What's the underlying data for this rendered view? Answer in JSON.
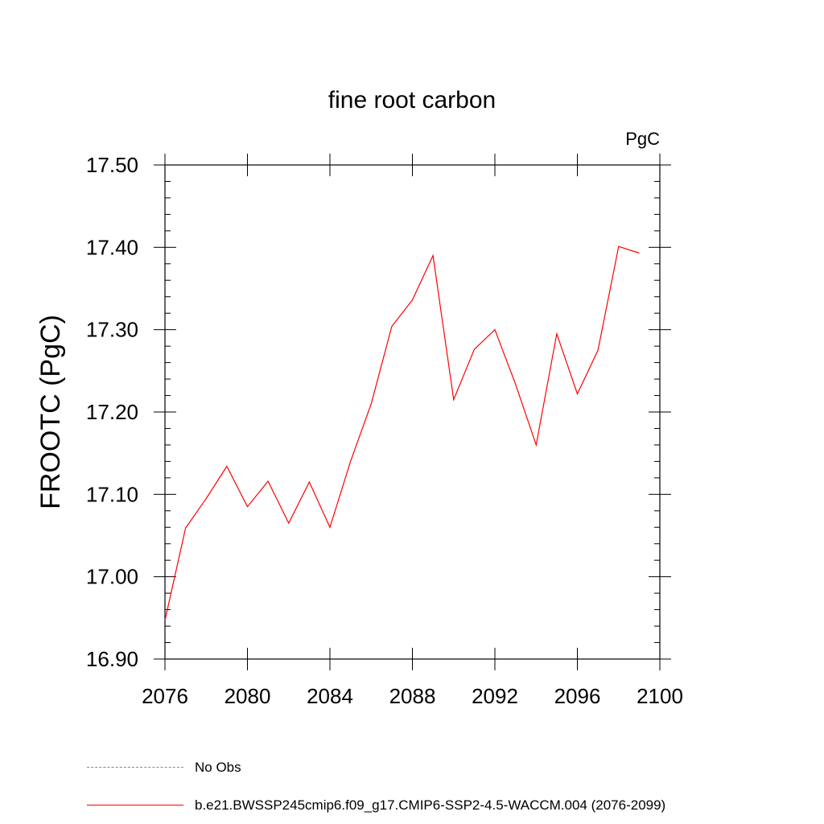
{
  "chart_data": {
    "type": "line",
    "title": "fine root carbon",
    "units_label": "PgC",
    "ylabel": "FROOTC  (PgC)",
    "xlabel": "",
    "xlim": [
      2076,
      2100
    ],
    "ylim": [
      16.9,
      17.5
    ],
    "xticks": [
      2076,
      2080,
      2084,
      2088,
      2092,
      2096,
      2100
    ],
    "xtick_labels": [
      "2076",
      "2080",
      "2084",
      "2088",
      "2092",
      "2096",
      "2100"
    ],
    "yticks": [
      16.9,
      17.0,
      17.1,
      17.2,
      17.3,
      17.4,
      17.5
    ],
    "ytick_labels": [
      "16.90",
      "17.00",
      "17.10",
      "17.20",
      "17.30",
      "17.40",
      "17.50"
    ],
    "grid": false,
    "series": [
      {
        "name": "b.e21.BWSSP245cmip6.f09_g17.CMIP6-SSP2-4.5-WACCM.004 (2076-2099)",
        "color": "#ff0000",
        "x": [
          2076,
          2077,
          2078,
          2079,
          2080,
          2081,
          2082,
          2083,
          2084,
          2085,
          2086,
          2087,
          2088,
          2089,
          2090,
          2091,
          2092,
          2093,
          2094,
          2095,
          2096,
          2097,
          2098,
          2099
        ],
        "values": [
          16.947,
          17.059,
          17.095,
          17.134,
          17.085,
          17.116,
          17.065,
          17.115,
          17.06,
          17.14,
          17.21,
          17.304,
          17.336,
          17.39,
          17.215,
          17.276,
          17.3,
          17.234,
          17.16,
          17.295,
          17.222,
          17.275,
          17.401,
          17.393
        ]
      }
    ],
    "legend": [
      {
        "label": "No Obs",
        "style": "dashed",
        "color": "#8080c0"
      },
      {
        "label": "b.e21.BWSSP245cmip6.f09_g17.CMIP6-SSP2-4.5-WACCM.004 (2076-2099)",
        "style": "solid",
        "color": "#ff0000"
      }
    ],
    "legend_position": "bottom-left"
  }
}
